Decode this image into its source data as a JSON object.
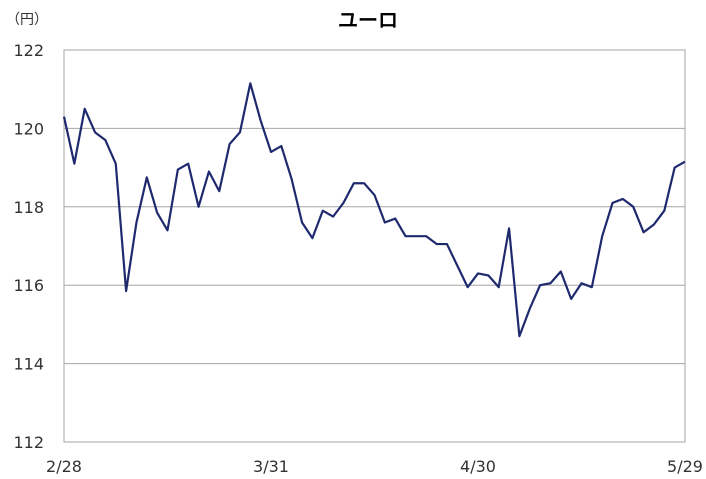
{
  "chart_data": {
    "type": "line",
    "title": "ユーロ",
    "unit_label": "（円）",
    "ylim": [
      112,
      122
    ],
    "yticks": [
      "122",
      "120",
      "118",
      "116",
      "114",
      "112"
    ],
    "ytick_values": [
      122,
      120,
      118,
      116,
      114,
      112
    ],
    "xtick_labels": [
      "2/28",
      "3/31",
      "4/30",
      "5/29"
    ],
    "grid": true,
    "legend": "none",
    "series": [
      {
        "color": "#1f2a6e",
        "values": [
          120.3,
          119.1,
          120.5,
          119.9,
          119.7,
          119.1,
          115.85,
          117.6,
          118.75,
          117.85,
          117.4,
          118.95,
          119.1,
          118.0,
          118.9,
          118.4,
          119.6,
          119.9,
          121.15,
          120.2,
          119.4,
          119.55,
          118.7,
          117.6,
          117.2,
          117.9,
          117.75,
          118.1,
          118.6,
          118.6,
          118.3,
          117.6,
          117.7,
          117.25,
          117.25,
          117.25,
          117.05,
          117.05,
          116.5,
          115.95,
          116.3,
          116.25,
          115.95,
          117.45,
          114.7,
          115.4,
          116.0,
          116.05,
          116.35,
          115.65,
          116.05,
          115.95,
          117.25,
          118.1,
          118.2,
          118.0,
          117.35,
          117.55,
          117.9,
          119.0,
          119.15
        ]
      }
    ]
  }
}
